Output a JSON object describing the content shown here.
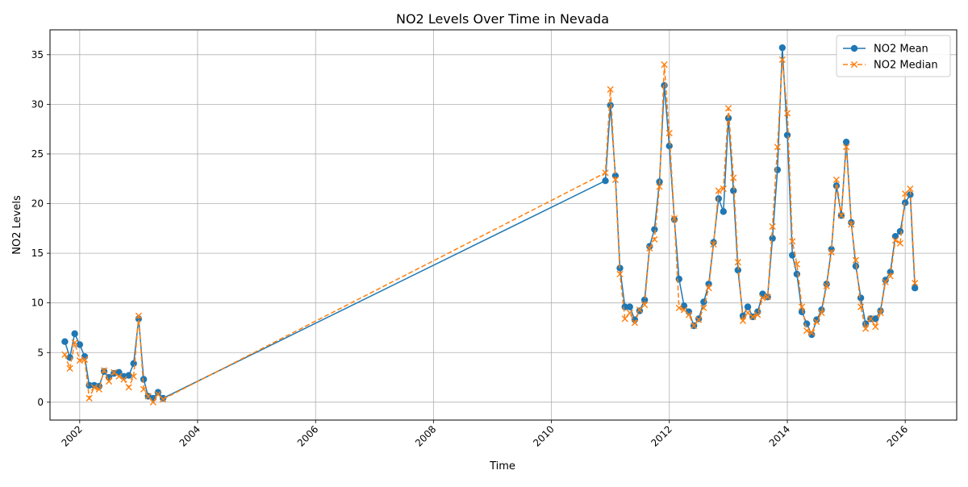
{
  "chart_data": {
    "type": "line",
    "title": "NO2 Levels Over Time in Nevada",
    "xlabel": "Time",
    "ylabel": "NO2 Levels",
    "x_ticks": [
      "2002",
      "2004",
      "2006",
      "2008",
      "2010",
      "2012",
      "2014",
      "2016"
    ],
    "y_ticks": [
      "0",
      "5",
      "10",
      "15",
      "20",
      "25",
      "30",
      "35"
    ],
    "xlim": [
      "2001-07-01",
      "2016-11-15"
    ],
    "ylim": [
      -1.8,
      37.5
    ],
    "grid": true,
    "legend_position": "top-right",
    "colors": {
      "mean": "#1f77b4",
      "median": "#ff7f0e",
      "grid": "#b0b0b0"
    },
    "x": [
      "2001-10-01",
      "2001-11-01",
      "2001-12-01",
      "2002-01-01",
      "2002-02-01",
      "2002-03-01",
      "2002-04-01",
      "2002-05-01",
      "2002-06-01",
      "2002-07-01",
      "2002-08-01",
      "2002-09-01",
      "2002-10-01",
      "2002-11-01",
      "2002-12-01",
      "2003-01-01",
      "2003-02-01",
      "2003-03-01",
      "2003-04-01",
      "2003-05-01",
      "2003-06-01",
      "2010-12-01",
      "2011-01-01",
      "2011-02-01",
      "2011-03-01",
      "2011-04-01",
      "2011-05-01",
      "2011-06-01",
      "2011-07-01",
      "2011-08-01",
      "2011-09-01",
      "2011-10-01",
      "2011-11-01",
      "2011-12-01",
      "2012-01-01",
      "2012-02-01",
      "2012-03-01",
      "2012-04-01",
      "2012-05-01",
      "2012-06-01",
      "2012-07-01",
      "2012-08-01",
      "2012-09-01",
      "2012-10-01",
      "2012-11-01",
      "2012-12-01",
      "2013-01-01",
      "2013-02-01",
      "2013-03-01",
      "2013-04-01",
      "2013-05-01",
      "2013-06-01",
      "2013-07-01",
      "2013-08-01",
      "2013-09-01",
      "2013-10-01",
      "2013-11-01",
      "2013-12-01",
      "2014-01-01",
      "2014-02-01",
      "2014-03-01",
      "2014-04-01",
      "2014-05-01",
      "2014-06-01",
      "2014-07-01",
      "2014-08-01",
      "2014-09-01",
      "2014-10-01",
      "2014-11-01",
      "2014-12-01",
      "2015-01-01",
      "2015-02-01",
      "2015-03-01",
      "2015-04-01",
      "2015-05-01",
      "2015-06-01",
      "2015-07-01",
      "2015-08-01",
      "2015-09-01",
      "2015-10-01",
      "2015-11-01",
      "2015-12-01",
      "2016-01-01",
      "2016-02-01",
      "2016-03-01"
    ],
    "series": [
      {
        "name": "NO2 Mean",
        "marker": "o",
        "line": "solid",
        "values": [
          6.1,
          4.5,
          6.9,
          5.8,
          4.6,
          1.7,
          1.7,
          1.6,
          3.1,
          2.5,
          2.9,
          3.0,
          2.6,
          2.7,
          3.9,
          8.4,
          2.3,
          0.6,
          0.4,
          1.0,
          0.4,
          22.3,
          29.9,
          22.8,
          13.5,
          9.6,
          9.6,
          8.3,
          9.2,
          10.3,
          15.7,
          17.4,
          22.2,
          31.9,
          25.8,
          18.4,
          12.4,
          9.7,
          9.1,
          7.7,
          8.4,
          10.1,
          11.9,
          16.1,
          20.5,
          19.2,
          28.6,
          21.3,
          13.3,
          8.7,
          9.6,
          8.6,
          9.1,
          10.9,
          10.6,
          16.5,
          23.4,
          35.7,
          26.9,
          14.8,
          12.9,
          9.1,
          7.9,
          6.8,
          8.3,
          9.3,
          11.9,
          15.4,
          21.8,
          18.8,
          26.2,
          18.1,
          13.7,
          10.5,
          7.9,
          8.4,
          8.4,
          9.2,
          12.3,
          13.1,
          16.7,
          17.2,
          20.1,
          20.9,
          11.5
        ]
      },
      {
        "name": "NO2 Median",
        "marker": "x",
        "line": "dashed",
        "values": [
          4.8,
          3.4,
          6.0,
          4.2,
          4.3,
          0.4,
          1.5,
          1.3,
          3.2,
          2.1,
          3.0,
          2.6,
          2.3,
          1.5,
          2.6,
          8.7,
          1.3,
          0.6,
          0.0,
          0.8,
          0.3,
          23.1,
          31.5,
          22.4,
          12.9,
          8.4,
          9.0,
          8.0,
          9.3,
          9.8,
          15.5,
          16.4,
          21.7,
          34.0,
          27.1,
          18.5,
          9.5,
          9.3,
          8.8,
          7.7,
          8.3,
          9.5,
          11.5,
          15.9,
          21.3,
          21.5,
          29.6,
          22.6,
          14.1,
          8.2,
          9.0,
          8.6,
          8.8,
          10.5,
          10.6,
          17.7,
          25.7,
          34.5,
          29.1,
          16.2,
          13.9,
          9.6,
          7.2,
          7.0,
          8.1,
          9.0,
          11.7,
          15.1,
          22.4,
          18.8,
          25.7,
          17.9,
          14.3,
          9.6,
          7.4,
          8.4,
          7.6,
          9.0,
          12.1,
          12.7,
          16.3,
          16.0,
          21.0,
          21.5,
          12.0
        ]
      }
    ]
  }
}
